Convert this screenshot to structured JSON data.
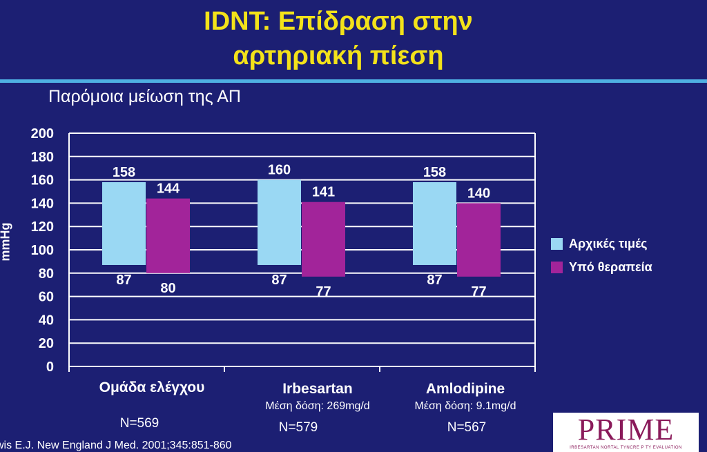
{
  "slide": {
    "title_line1": "IDNT: Επίδραση στην",
    "title_line2": "αρτηριακή πίεση",
    "subtitle": "Παρόμοια μείωση της ΑΠ",
    "citation": "wis E.J. New England J Med. 2001;345:851-860",
    "logo": {
      "text": "PRIME",
      "subtext": "IRBESARTAN NORTAL TYNCRE P TY EVALUATION"
    }
  },
  "chart_data": {
    "type": "bar",
    "subtype": "floating-range",
    "ylabel": "mmHg",
    "ylim": [
      0,
      200
    ],
    "yticks": [
      0,
      20,
      40,
      60,
      80,
      100,
      120,
      140,
      160,
      180,
      200
    ],
    "grid": true,
    "legend_position": "right",
    "categories": [
      "Ομάδα ελέγχου",
      "Irbesartan",
      "Amlodipine"
    ],
    "category_doses": [
      "",
      "Μέση δόση: 269mg/d",
      "Μέση δόση: 9.1mg/d"
    ],
    "category_n": [
      "N=569",
      "N=579",
      "N=567"
    ],
    "series": [
      {
        "name": "Αρχικές τιμές",
        "color": "#9ad8f3",
        "low": [
          87,
          87,
          87
        ],
        "high": [
          158,
          160,
          158
        ]
      },
      {
        "name": "Υπό θεραπεία",
        "color": "#a2249a",
        "low": [
          80,
          77,
          77
        ],
        "high": [
          144,
          141,
          140
        ]
      }
    ]
  }
}
